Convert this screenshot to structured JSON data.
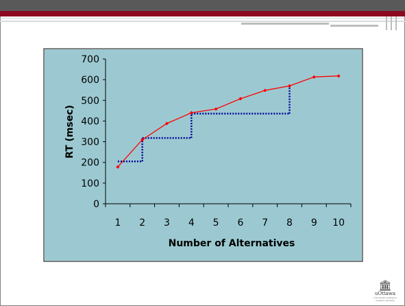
{
  "slide": {
    "logo_icon": "building-icon",
    "logo_name": "uOttawa",
    "logo_tag1": "L'Université canadienne",
    "logo_tag2": "Canada's university"
  },
  "colors": {
    "plot_bg": "#9cc9d1",
    "rt_line": "#ff0000",
    "step_line": "#000099",
    "header_dark": "#595959",
    "header_red": "#8b0a1f"
  },
  "chart_data": {
    "type": "line",
    "x": [
      1,
      2,
      3,
      4,
      5,
      6,
      7,
      8,
      9,
      10
    ],
    "series": [
      {
        "values": [
          178,
          310,
          388,
          440,
          458,
          508,
          548,
          570,
          613,
          618
        ]
      }
    ],
    "steps": [
      {
        "from": 1,
        "to": 2,
        "y": 205
      },
      {
        "from": 2,
        "to": 4,
        "y": 318
      },
      {
        "from": 4,
        "to": 8,
        "y": 436
      }
    ],
    "title": "",
    "xlabel": "Number of Alternatives",
    "ylabel": "RT (msec)",
    "ylim": [
      0,
      700
    ],
    "yticks": [
      0,
      100,
      200,
      300,
      400,
      500,
      600,
      700
    ],
    "xticks": [
      1,
      2,
      3,
      4,
      5,
      6,
      7,
      8,
      9,
      10
    ],
    "grid": false,
    "legend": "none"
  }
}
